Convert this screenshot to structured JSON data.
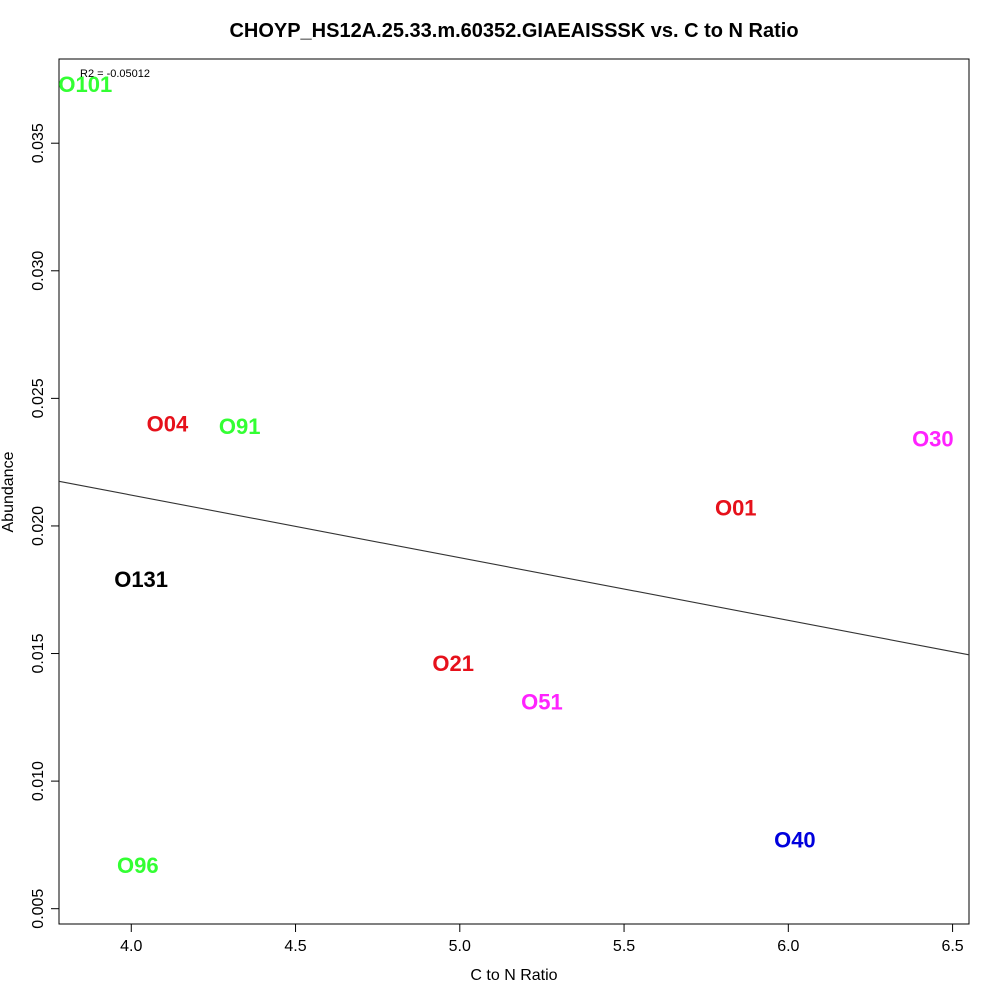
{
  "chart_data": {
    "type": "scatter",
    "title": "CHOYP_HS12A.25.33.m.60352.GIAEAISSSK vs. C to N Ratio",
    "xlabel": "C to N Ratio",
    "ylabel": "Abundance",
    "xlim": [
      3.78,
      6.55
    ],
    "ylim": [
      0.0044,
      0.0383
    ],
    "x_ticks": [
      4.0,
      4.5,
      5.0,
      5.5,
      6.0,
      6.5
    ],
    "x_tick_labels": [
      "4.0",
      "4.5",
      "5.0",
      "5.5",
      "6.0",
      "6.5"
    ],
    "y_ticks": [
      0.005,
      0.01,
      0.015,
      0.02,
      0.025,
      0.03,
      0.035
    ],
    "y_tick_labels": [
      "0.005",
      "0.010",
      "0.015",
      "0.020",
      "0.025",
      "0.030",
      "0.035"
    ],
    "grid": false,
    "annotation": "R2 = -0.05012",
    "points": [
      {
        "label": "O101",
        "x": 3.86,
        "y": 0.0373,
        "color": "#33ff33"
      },
      {
        "label": "O04",
        "x": 4.11,
        "y": 0.024,
        "color": "#e6111b"
      },
      {
        "label": "O91",
        "x": 4.33,
        "y": 0.0239,
        "color": "#33ff33"
      },
      {
        "label": "O131",
        "x": 4.03,
        "y": 0.0179,
        "color": "#000000"
      },
      {
        "label": "O96",
        "x": 4.02,
        "y": 0.0067,
        "color": "#33ff33"
      },
      {
        "label": "O21",
        "x": 4.98,
        "y": 0.0146,
        "color": "#e6111b"
      },
      {
        "label": "O51",
        "x": 5.25,
        "y": 0.0131,
        "color": "#ff22ff"
      },
      {
        "label": "O01",
        "x": 5.84,
        "y": 0.0207,
        "color": "#e6111b"
      },
      {
        "label": "O40",
        "x": 6.02,
        "y": 0.0077,
        "color": "#0000dd"
      },
      {
        "label": "O30",
        "x": 6.44,
        "y": 0.0234,
        "color": "#ff22ff"
      }
    ],
    "fit_line": {
      "x": [
        3.78,
        6.55
      ],
      "y": [
        0.02175,
        0.01495
      ]
    }
  }
}
